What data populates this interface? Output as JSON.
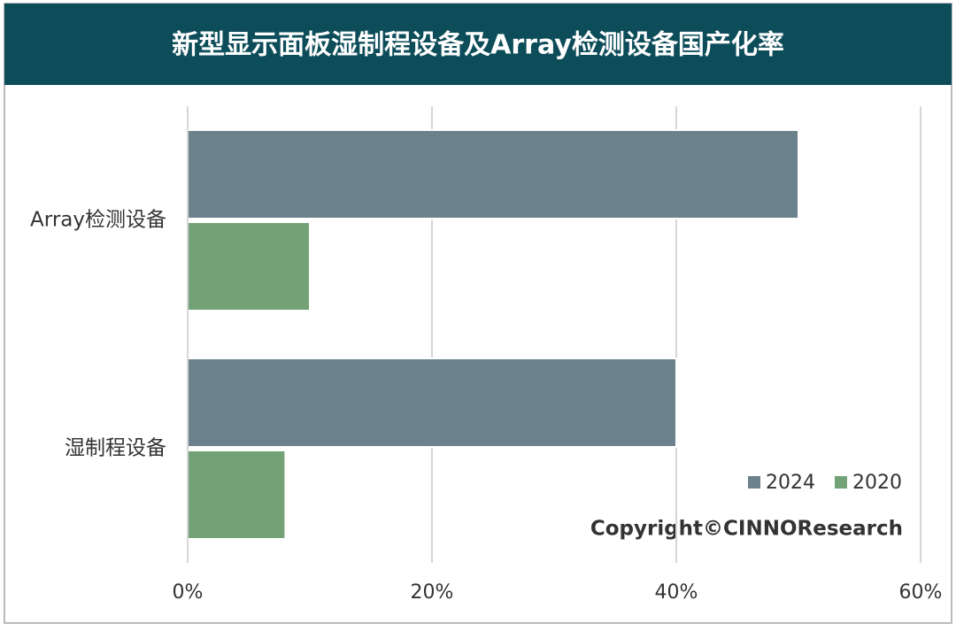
{
  "chart_data": {
    "type": "hbar",
    "title": "新型显示面板湿制程设备及Array检测设备国产化率",
    "categories": [
      "Array检测设备",
      "湿制程设备"
    ],
    "series": [
      {
        "name": "2024",
        "color": "#6b818c",
        "values": [
          50,
          40
        ]
      },
      {
        "name": "2020",
        "color": "#72a276",
        "values": [
          10,
          8
        ]
      }
    ],
    "xlim": [
      0,
      60
    ],
    "xticks": [
      {
        "value": 0,
        "label": "0%"
      },
      {
        "value": 20,
        "label": "20%"
      },
      {
        "value": 40,
        "label": "40%"
      },
      {
        "value": 60,
        "label": "60%"
      }
    ],
    "grid": true,
    "legend": "lower-right",
    "annotation": "Copyright©CINNOResearch"
  }
}
